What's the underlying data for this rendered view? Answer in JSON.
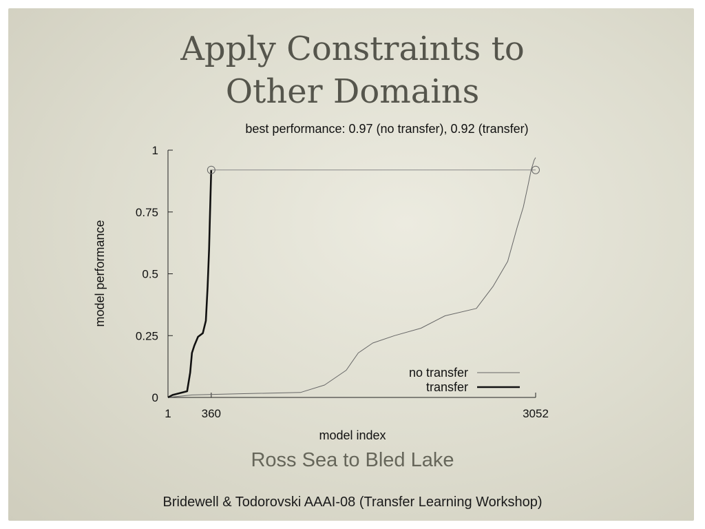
{
  "slide": {
    "title_line1": "Apply Constraints to",
    "title_line2": "Other Domains",
    "subtitle": "Ross Sea to Bled Lake",
    "footer": "Bridewell & Todorovski AAAI-08 (Transfer Learning Workshop)"
  },
  "chart_data": {
    "type": "line",
    "title": "best performance: 0.97 (no transfer), 0.92 (transfer)",
    "xlabel": "model index",
    "ylabel": "model performance",
    "xlim": [
      1,
      3052
    ],
    "ylim": [
      0,
      1
    ],
    "x_ticks": [
      "1",
      "360",
      "3052"
    ],
    "y_ticks": [
      "0",
      "0.25",
      "0.5",
      "0.75",
      "1"
    ],
    "legend_position": "bottom-right",
    "grid": false,
    "series": [
      {
        "name": "no transfer",
        "color": "#666666",
        "points": [
          [
            1,
            0
          ],
          [
            200,
            0.01
          ],
          [
            600,
            0.015
          ],
          [
            1100,
            0.02
          ],
          [
            1300,
            0.05
          ],
          [
            1480,
            0.11
          ],
          [
            1580,
            0.18
          ],
          [
            1700,
            0.22
          ],
          [
            1880,
            0.25
          ],
          [
            2100,
            0.28
          ],
          [
            2300,
            0.33
          ],
          [
            2560,
            0.36
          ],
          [
            2700,
            0.45
          ],
          [
            2820,
            0.55
          ],
          [
            2900,
            0.69
          ],
          [
            2950,
            0.77
          ],
          [
            2990,
            0.86
          ],
          [
            3015,
            0.92
          ],
          [
            3040,
            0.96
          ],
          [
            3052,
            0.97
          ]
        ]
      },
      {
        "name": "transfer",
        "color": "#111111",
        "points": [
          [
            1,
            0
          ],
          [
            40,
            0.01
          ],
          [
            160,
            0.025
          ],
          [
            185,
            0.1
          ],
          [
            200,
            0.18
          ],
          [
            220,
            0.21
          ],
          [
            250,
            0.245
          ],
          [
            290,
            0.26
          ],
          [
            315,
            0.31
          ],
          [
            330,
            0.45
          ],
          [
            342,
            0.6
          ],
          [
            350,
            0.75
          ],
          [
            356,
            0.85
          ],
          [
            360,
            0.92
          ]
        ]
      }
    ],
    "markers": [
      {
        "x": 360,
        "y": 0.92
      },
      {
        "x": 3052,
        "y": 0.92
      }
    ]
  }
}
